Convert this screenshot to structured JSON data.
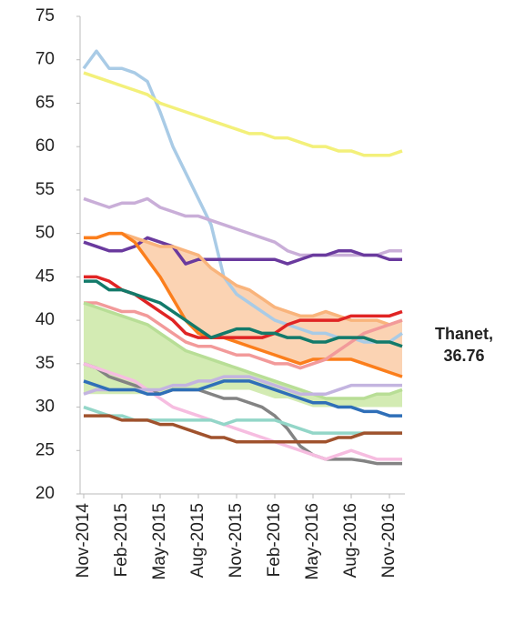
{
  "chart_data": {
    "type": "line",
    "categories": [
      "Nov-2014",
      null,
      null,
      "Feb-2015",
      null,
      null,
      "May-2015",
      null,
      null,
      "Aug-2015",
      null,
      null,
      "Nov-2015",
      null,
      null,
      "Feb-2016",
      null,
      null,
      "May-2016",
      null,
      null,
      "Aug-2016",
      null,
      null,
      "Nov-2016",
      null
    ],
    "ylim": [
      20,
      75
    ],
    "yticks": [
      20,
      25,
      30,
      35,
      40,
      45,
      50,
      55,
      60,
      65,
      70,
      75
    ],
    "bands": [
      {
        "color": "#fbd3b3",
        "upper": [
          49.5,
          49.5,
          50,
          50,
          49.5,
          49,
          48.5,
          48.5,
          48,
          47.5,
          46,
          45,
          44,
          43.5,
          42.5,
          41.5,
          41,
          40.5,
          40.5,
          41,
          40.5,
          40,
          40,
          40,
          39.5,
          40
        ],
        "lower": [
          49.5,
          49.5,
          50,
          50,
          49,
          47,
          45,
          42.5,
          40,
          38.5,
          38,
          38,
          37.5,
          37,
          36.5,
          36,
          35.5,
          35,
          35.5,
          35.5,
          35.5,
          35.5,
          35,
          34.5,
          34,
          33.5
        ]
      },
      {
        "color": "#d3ebb3",
        "upper": [
          42,
          41.5,
          41,
          40.5,
          40,
          39.5,
          38.5,
          37.5,
          36.5,
          36,
          35.5,
          35,
          34.5,
          34,
          33.5,
          33,
          32.5,
          32,
          31.5,
          31,
          31,
          31,
          31,
          31.5,
          31.5,
          32
        ],
        "lower": [
          31.5,
          31.5,
          31.5,
          31.5,
          31.5,
          31.5,
          31.5,
          32,
          32,
          32,
          32,
          32,
          32,
          32,
          31.5,
          31,
          31,
          30.5,
          30,
          30,
          30,
          30,
          30,
          30,
          30,
          30
        ]
      }
    ],
    "series": [
      {
        "color": "#a9cbe6",
        "values": [
          69,
          71,
          69,
          69,
          68.5,
          67.5,
          64,
          60,
          57,
          54,
          51,
          45,
          43,
          42,
          41,
          40,
          39.5,
          39,
          38.5,
          38.5,
          38,
          38,
          37.5,
          37.5,
          37.5,
          38.5
        ]
      },
      {
        "color": "#f3f07a",
        "values": [
          68.5,
          68,
          67.5,
          67,
          66.5,
          66,
          65,
          64.5,
          64,
          63.5,
          63,
          62.5,
          62,
          61.5,
          61.5,
          61,
          61,
          60.5,
          60,
          60,
          59.5,
          59.5,
          59,
          59,
          59,
          59.5
        ]
      },
      {
        "color": "#c9aed8",
        "values": [
          54,
          53.5,
          53,
          53.5,
          53.5,
          54,
          53,
          52.5,
          52,
          52,
          51.5,
          51,
          50.5,
          50,
          49.5,
          49,
          48,
          47.5,
          47.5,
          47.5,
          47.5,
          47.5,
          47.5,
          47.5,
          48,
          48
        ]
      },
      {
        "color": "#6a3a9e",
        "values": [
          49,
          48.5,
          48,
          48,
          48.5,
          49.5,
          49,
          48.5,
          46.5,
          47,
          47,
          47,
          47,
          47,
          47,
          47,
          46.5,
          47,
          47.5,
          47.5,
          48,
          48,
          47.5,
          47.5,
          47,
          47
        ]
      },
      {
        "color": "#f9b47c",
        "values": [
          49.5,
          49.5,
          50,
          50,
          49.5,
          49,
          48.5,
          48.5,
          48,
          47.5,
          46,
          45,
          44,
          43.5,
          42.5,
          41.5,
          41,
          40.5,
          40.5,
          41,
          40.5,
          40,
          40,
          40,
          39.5,
          40
        ]
      },
      {
        "color": "#fb7e1c",
        "values": [
          49.5,
          49.5,
          50,
          50,
          49,
          47,
          45,
          42.5,
          40,
          38.5,
          38,
          38,
          37.5,
          37,
          36.5,
          36,
          35.5,
          35,
          35.5,
          35.5,
          35.5,
          35.5,
          35,
          34.5,
          34,
          33.5
        ]
      },
      {
        "color": "#e02424",
        "values": [
          45,
          45,
          44.5,
          43.5,
          43,
          42,
          41,
          40,
          38.5,
          38,
          38,
          38,
          38,
          38,
          38,
          38.5,
          39.5,
          40,
          40,
          40,
          40,
          40.5,
          40.5,
          40.5,
          40.5,
          41
        ]
      },
      {
        "color": "#f29a9a",
        "values": [
          42,
          42,
          41.5,
          41,
          41,
          40.5,
          39.5,
          38.5,
          37.5,
          37,
          37,
          36.5,
          36,
          36,
          35.5,
          35,
          35,
          34.5,
          35,
          35.5,
          36.5,
          37.5,
          38.5,
          39,
          39.5,
          40
        ]
      },
      {
        "color": "#b8de96",
        "values": [
          42,
          41.5,
          41,
          40.5,
          40,
          39.5,
          38.5,
          37.5,
          36.5,
          36,
          35.5,
          35,
          34.5,
          34,
          33.5,
          33,
          32.5,
          32,
          31.5,
          31,
          31,
          31,
          31,
          31.5,
          31.5,
          32
        ]
      },
      {
        "color": "#137a6a",
        "values": [
          44.5,
          44.5,
          43.5,
          43.5,
          43,
          42.5,
          42,
          41,
          40,
          39,
          38,
          38.5,
          39,
          39,
          38.5,
          38.5,
          38,
          38,
          37.5,
          37.5,
          38,
          38,
          38,
          37.5,
          37.5,
          37
        ]
      },
      {
        "color": "#838383",
        "values": [
          35,
          34.5,
          33.5,
          33,
          32.5,
          32,
          31.5,
          32,
          32,
          32,
          31.5,
          31,
          31,
          30.5,
          30,
          29,
          27.5,
          25.5,
          24.5,
          24,
          24,
          24,
          23.8,
          23.5,
          23.5,
          23.5
        ]
      },
      {
        "color": "#f6bde0",
        "values": [
          35,
          34.5,
          34,
          33.5,
          33,
          32,
          31,
          30,
          29.5,
          29,
          28.5,
          28,
          27.5,
          27,
          26.5,
          26,
          25.5,
          25,
          24.5,
          24,
          24.5,
          25,
          24.5,
          24,
          24,
          24
        ]
      },
      {
        "color": "#c3b4e0",
        "values": [
          31.5,
          32,
          32,
          32,
          32,
          32,
          32,
          32.5,
          32.5,
          33,
          33,
          33.5,
          33.5,
          33.5,
          33,
          32.5,
          32,
          31.5,
          31.5,
          31.5,
          32,
          32.5,
          32.5,
          32.5,
          32.5,
          32.5
        ]
      },
      {
        "color": "#2f6fb8",
        "values": [
          33,
          32.5,
          32,
          32,
          32,
          31.5,
          31.5,
          32,
          32,
          32,
          32.5,
          33,
          33,
          33,
          32.5,
          32,
          31.5,
          31,
          30.5,
          30.5,
          30,
          30,
          29.5,
          29.5,
          29,
          29
        ]
      },
      {
        "color": "#93d6c8",
        "values": [
          30,
          29.5,
          29,
          29,
          28.5,
          28.5,
          28.5,
          28.5,
          28.5,
          28.5,
          28.5,
          28,
          28.5,
          28.5,
          28.5,
          28.5,
          28,
          27.5,
          27,
          27,
          27,
          27,
          27,
          27,
          27,
          27
        ]
      },
      {
        "color": "#a0522d",
        "values": [
          29,
          29,
          29,
          28.5,
          28.5,
          28.5,
          28,
          28,
          27.5,
          27,
          26.5,
          26.5,
          26,
          26,
          26,
          26,
          26,
          26,
          26,
          26,
          26.5,
          26.5,
          27,
          27,
          27,
          27
        ]
      }
    ],
    "annotation": {
      "label": "Thanet,",
      "value": 36.76
    }
  }
}
